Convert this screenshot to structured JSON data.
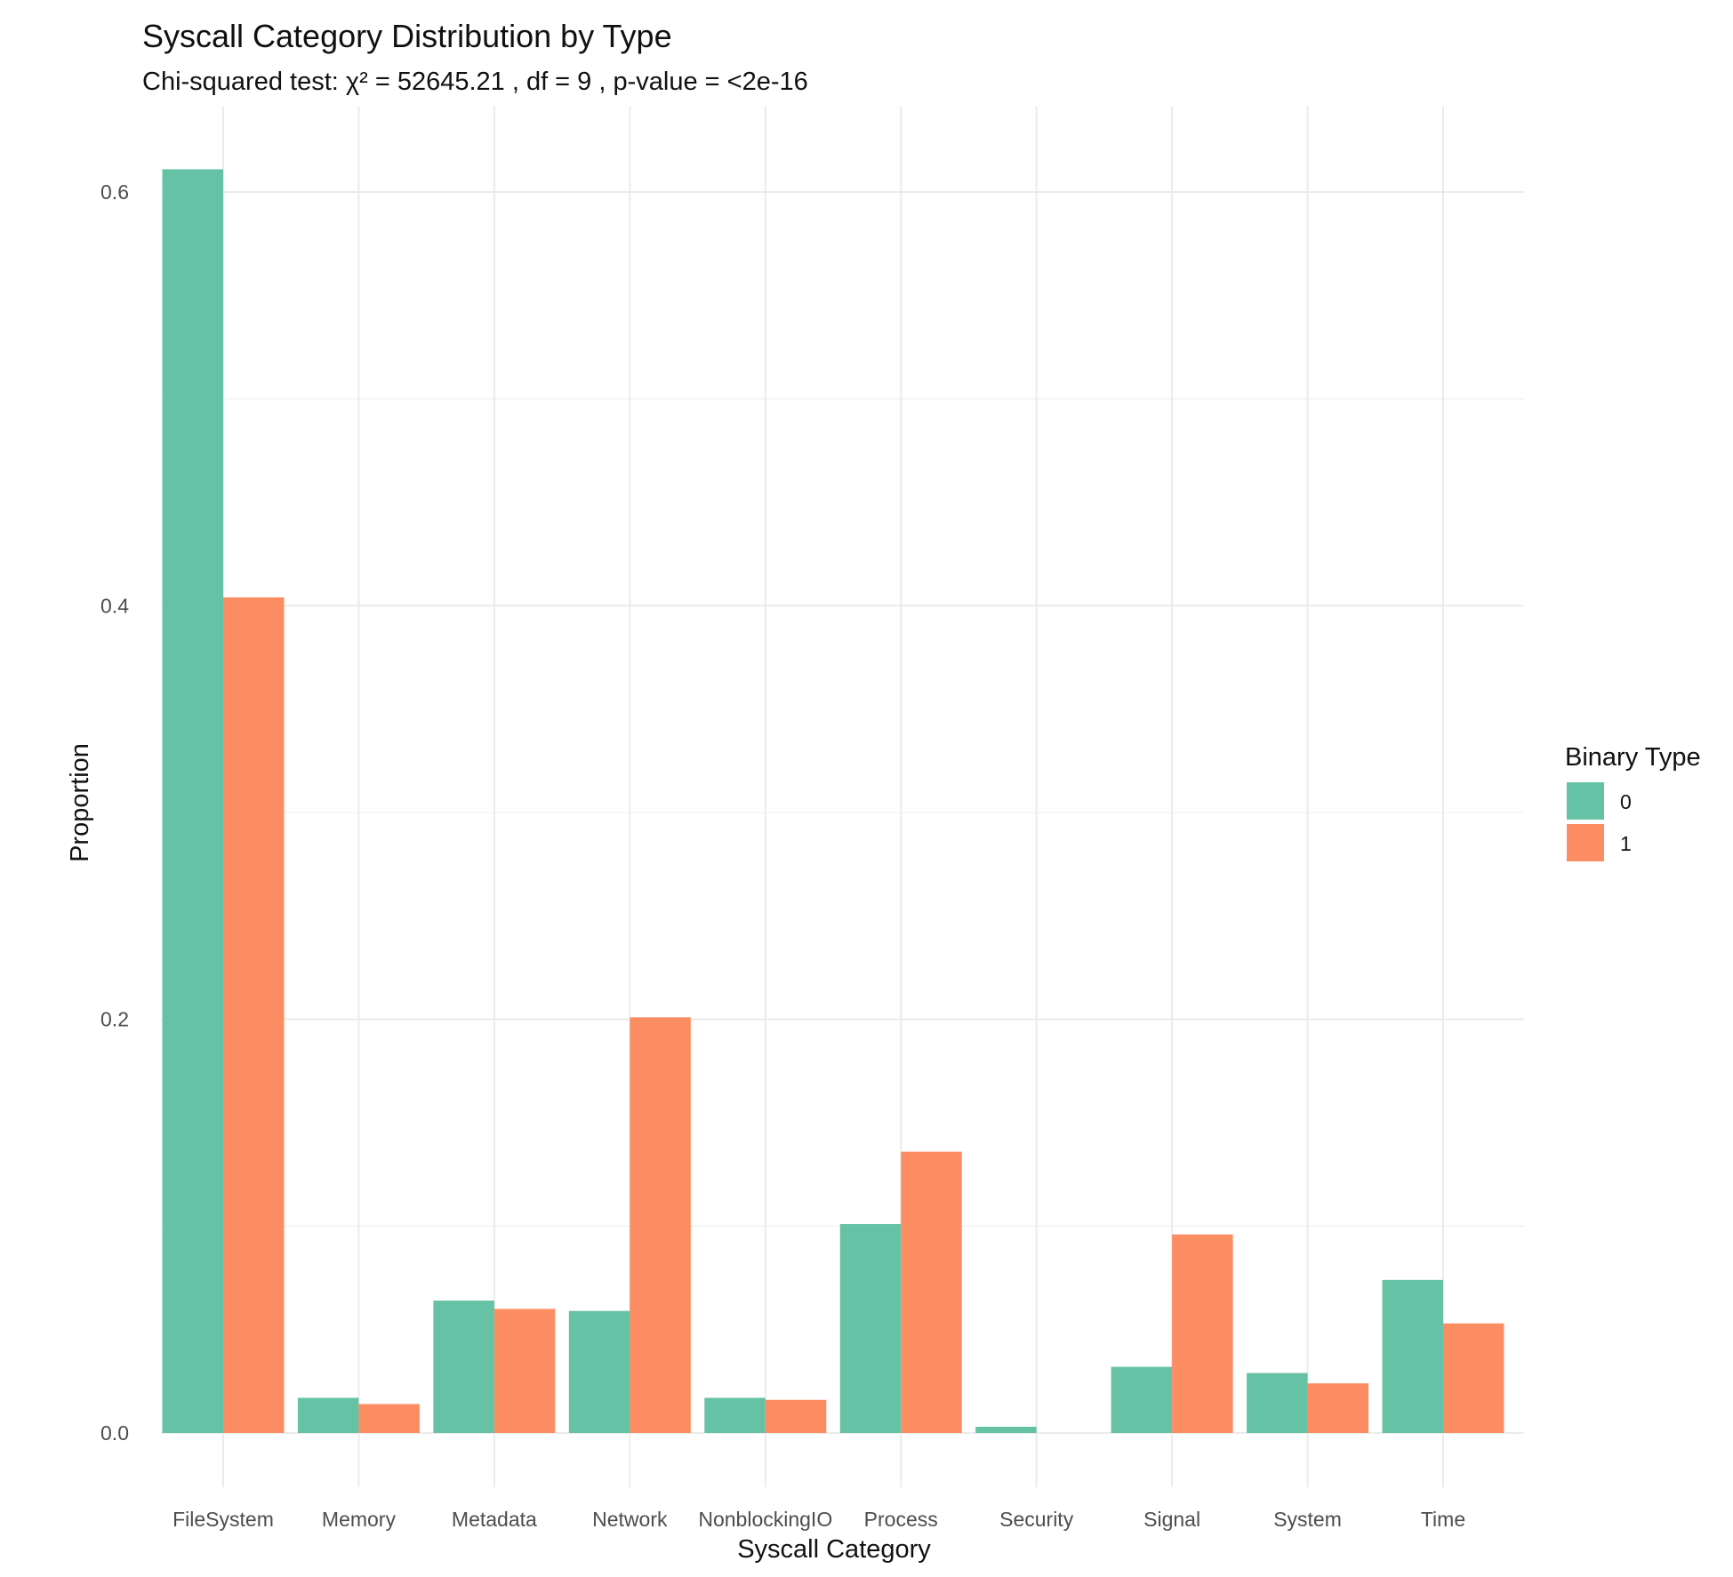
{
  "chart_data": {
    "type": "bar",
    "title": "Syscall Category Distribution by Type",
    "subtitle": "Chi-squared test: χ² = 52645.21 , df = 9 , p-value = <2e-16",
    "xlabel": "Syscall Category",
    "ylabel": "Proportion",
    "ylim": [
      -0.008,
      0.65
    ],
    "yticks": [
      0.0,
      0.2,
      0.4,
      0.6
    ],
    "ytick_labels": [
      "0.0",
      "0.2",
      "0.4",
      "0.6"
    ],
    "grid": true,
    "legend": {
      "title": "Binary Type",
      "placement": "right"
    },
    "categories": [
      "FileSystem",
      "Memory",
      "Metadata",
      "Network",
      "NonblockingIO",
      "Process",
      "Security",
      "Signal",
      "System",
      "Time"
    ],
    "series": [
      {
        "name": "0",
        "color": "#66c2a5",
        "values": [
          0.611,
          0.017,
          0.064,
          0.059,
          0.017,
          0.101,
          0.003,
          0.032,
          0.029,
          0.074
        ]
      },
      {
        "name": "1",
        "color": "#fc8d62",
        "values": [
          0.404,
          0.014,
          0.06,
          0.201,
          0.016,
          0.136,
          0.0,
          0.096,
          0.024,
          0.053
        ]
      }
    ]
  }
}
